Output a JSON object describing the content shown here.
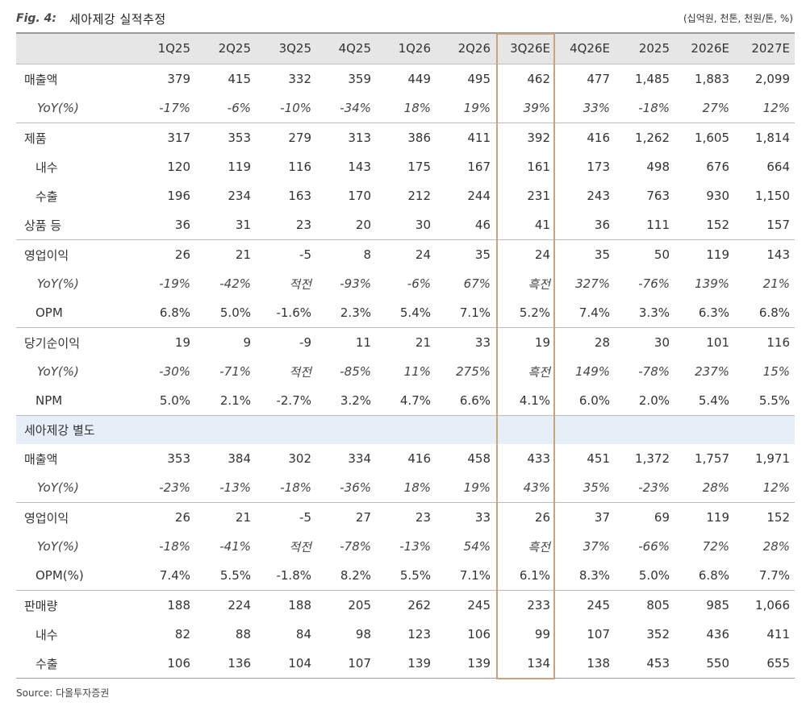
{
  "figure": {
    "label": "Fig. 4:",
    "title": "세아제강 실적추정",
    "units": "(십억원, 천톤, 천원/톤, %)",
    "source": "Source:  다올투자증권"
  },
  "columns": [
    "1Q25",
    "2Q25",
    "3Q25",
    "4Q25",
    "1Q26",
    "2Q26",
    "3Q26E",
    "4Q26E",
    "2025",
    "2026E",
    "2027E"
  ],
  "highlight_column": "3Q26E",
  "rows": [
    {
      "label": "매출액",
      "kind": "main",
      "sep": true,
      "values": [
        "379",
        "415",
        "332",
        "359",
        "449",
        "495",
        "462",
        "477",
        "1,485",
        "1,883",
        "2,099"
      ]
    },
    {
      "label": "YoY(%)",
      "kind": "yoy",
      "values": [
        "-17%",
        "-6%",
        "-10%",
        "-34%",
        "18%",
        "19%",
        "39%",
        "33%",
        "-18%",
        "27%",
        "12%"
      ]
    },
    {
      "label": "제품",
      "kind": "main",
      "sep": true,
      "values": [
        "317",
        "353",
        "279",
        "313",
        "386",
        "411",
        "392",
        "416",
        "1,262",
        "1,605",
        "1,814"
      ]
    },
    {
      "label": "내수",
      "kind": "sub",
      "values": [
        "120",
        "119",
        "116",
        "143",
        "175",
        "167",
        "161",
        "173",
        "498",
        "676",
        "664"
      ]
    },
    {
      "label": "수출",
      "kind": "sub",
      "values": [
        "196",
        "234",
        "163",
        "170",
        "212",
        "244",
        "231",
        "243",
        "763",
        "930",
        "1,150"
      ]
    },
    {
      "label": "상품 등",
      "kind": "main",
      "values": [
        "36",
        "31",
        "23",
        "20",
        "30",
        "46",
        "41",
        "36",
        "111",
        "152",
        "157"
      ]
    },
    {
      "label": "영업이익",
      "kind": "main",
      "sep": true,
      "values": [
        "26",
        "21",
        "-5",
        "8",
        "24",
        "35",
        "24",
        "35",
        "50",
        "119",
        "143"
      ]
    },
    {
      "label": "YoY(%)",
      "kind": "yoy",
      "values": [
        "-19%",
        "-42%",
        "적전",
        "-93%",
        "-6%",
        "67%",
        "흑전",
        "327%",
        "-76%",
        "139%",
        "21%"
      ]
    },
    {
      "label": "OPM",
      "kind": "main-indent",
      "values": [
        "6.8%",
        "5.0%",
        "-1.6%",
        "2.3%",
        "5.4%",
        "7.1%",
        "5.2%",
        "7.4%",
        "3.3%",
        "6.3%",
        "6.8%"
      ]
    },
    {
      "label": "당기순이익",
      "kind": "main",
      "sep": true,
      "values": [
        "19",
        "9",
        "-9",
        "11",
        "21",
        "33",
        "19",
        "28",
        "30",
        "101",
        "116"
      ]
    },
    {
      "label": "YoY(%)",
      "kind": "yoy",
      "values": [
        "-30%",
        "-71%",
        "적전",
        "-85%",
        "11%",
        "275%",
        "흑전",
        "149%",
        "-78%",
        "237%",
        "15%"
      ]
    },
    {
      "label": "NPM",
      "kind": "main-indent",
      "values": [
        "5.0%",
        "2.1%",
        "-2.7%",
        "3.2%",
        "4.7%",
        "6.6%",
        "4.1%",
        "6.0%",
        "2.0%",
        "5.4%",
        "5.5%"
      ]
    },
    {
      "label": "세아제강 별도",
      "kind": "section",
      "values": [
        "",
        "",
        "",
        "",
        "",
        "",
        "",
        "",
        "",
        "",
        ""
      ]
    },
    {
      "label": "매출액",
      "kind": "main",
      "values": [
        "353",
        "384",
        "302",
        "334",
        "416",
        "458",
        "433",
        "451",
        "1,372",
        "1,757",
        "1,971"
      ]
    },
    {
      "label": "YoY(%)",
      "kind": "yoy",
      "values": [
        "-23%",
        "-13%",
        "-18%",
        "-36%",
        "18%",
        "19%",
        "43%",
        "35%",
        "-23%",
        "28%",
        "12%"
      ]
    },
    {
      "label": "영업이익",
      "kind": "main",
      "sep": true,
      "values": [
        "26",
        "21",
        "-5",
        "27",
        "23",
        "33",
        "26",
        "37",
        "69",
        "119",
        "152"
      ]
    },
    {
      "label": "YoY(%)",
      "kind": "yoy",
      "values": [
        "-18%",
        "-41%",
        "적전",
        "-78%",
        "-13%",
        "54%",
        "흑전",
        "37%",
        "-66%",
        "72%",
        "28%"
      ]
    },
    {
      "label": "OPM(%)",
      "kind": "main-indent",
      "values": [
        "7.4%",
        "5.5%",
        "-1.8%",
        "8.2%",
        "5.5%",
        "7.1%",
        "6.1%",
        "8.3%",
        "5.0%",
        "6.8%",
        "7.7%"
      ]
    },
    {
      "label": "판매량",
      "kind": "main",
      "sep": true,
      "values": [
        "188",
        "224",
        "188",
        "205",
        "262",
        "245",
        "233",
        "245",
        "805",
        "985",
        "1,066"
      ]
    },
    {
      "label": "내수",
      "kind": "sub",
      "values": [
        "82",
        "88",
        "84",
        "98",
        "123",
        "106",
        "99",
        "107",
        "352",
        "436",
        "411"
      ]
    },
    {
      "label": "수출",
      "kind": "sub",
      "last": true,
      "values": [
        "106",
        "136",
        "104",
        "107",
        "139",
        "139",
        "134",
        "138",
        "453",
        "550",
        "655"
      ]
    }
  ]
}
